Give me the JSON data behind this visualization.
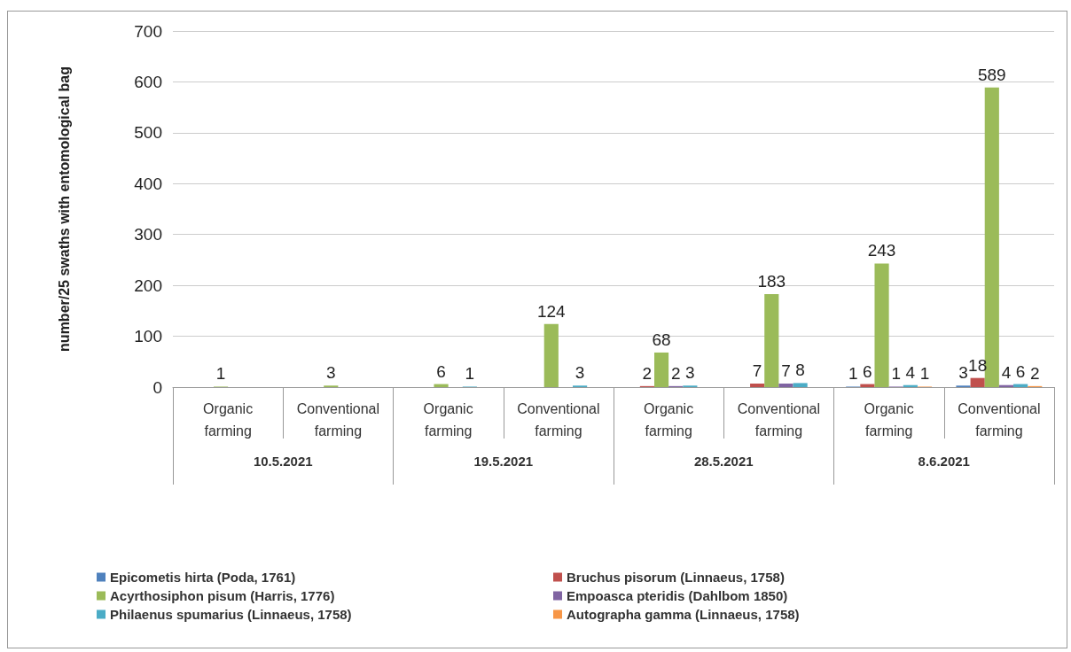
{
  "chart_data": {
    "type": "bar",
    "ylabel": "number/25 swaths with entomological bag",
    "categories": [
      "Organic farming",
      "Conventional farming",
      "Organic farming",
      "Conventional farming",
      "Organic farming",
      "Conventional farming",
      "Organic farming",
      "Conventional farming"
    ],
    "annotations": [
      "10.5.2021",
      "19.5.2021",
      "28.5.2021",
      "8.6.2021"
    ],
    "series": [
      {
        "name": "Epicometis hirta (Poda, 1761)",
        "color": "#4f81bd",
        "values": [
          null,
          null,
          null,
          null,
          null,
          null,
          1,
          3
        ]
      },
      {
        "name": "Bruchus pisorum (Linnaeus, 1758)",
        "color": "#c0504d",
        "values": [
          null,
          null,
          null,
          null,
          2,
          7,
          6,
          18
        ]
      },
      {
        "name": "Acyrthosiphon pisum (Harris, 1776)",
        "color": "#9bbb59",
        "values": [
          1,
          3,
          6,
          124,
          68,
          183,
          243,
          589
        ]
      },
      {
        "name": "Empoasca pteridis (Dahlbom 1850)",
        "color": "#8064a2",
        "values": [
          null,
          null,
          null,
          null,
          2,
          7,
          1,
          4
        ]
      },
      {
        "name": "Philaenus spumarius (Linnaeus, 1758)",
        "color": "#4bacc6",
        "values": [
          null,
          null,
          1,
          3,
          3,
          8,
          4,
          6
        ]
      },
      {
        "name": "Autographa gamma (Linnaeus, 1758)",
        "color": "#f79646",
        "values": [
          null,
          null,
          null,
          null,
          null,
          null,
          1,
          2
        ]
      }
    ],
    "ylim": [
      0,
      700
    ],
    "yticks": [
      0,
      100,
      200,
      300,
      400,
      500,
      600,
      700
    ],
    "grid": "y",
    "legend": "bottom",
    "data_labels": true
  }
}
